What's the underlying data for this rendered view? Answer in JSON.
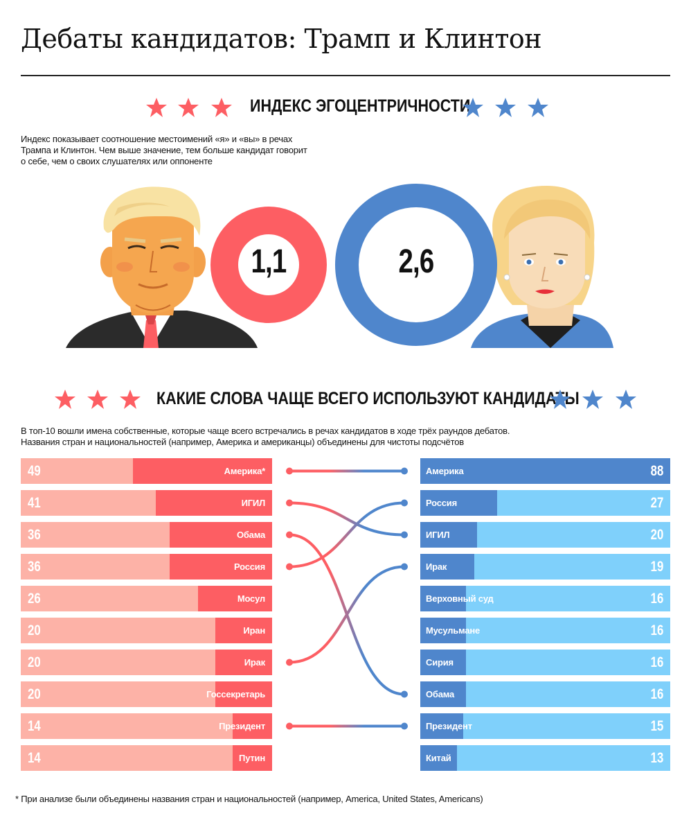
{
  "title": "Дебаты кандидатов: Трамп и Клинтон",
  "section1": {
    "heading": "ИНДЕКС ЭГОЦЕНТРИЧНОСТИ",
    "description": [
      "Индекс показывает соотношение местоимений «я» и «вы» в речах",
      "Трампа и Клинтон. Чем выше значение, тем больше кандидат говорит",
      "о себе, чем о своих слушателях или оппоненте"
    ],
    "trump_index": "1,1",
    "clinton_index": "2,6"
  },
  "section2": {
    "heading": "КАКИЕ СЛОВА ЧАЩЕ ВСЕГО ИСПОЛЬЗУЮТ КАНДИДАТЫ",
    "description": [
      "В топ-10 вошли имена собственные, которые чаще всего встречались в речах кандидатов в ходе трёх раундов дебатов.",
      "Названия стран и национальностей (например, Америка и американцы) объединены для чистоты подсчётов"
    ]
  },
  "footnote": "* При анализе были объединены названия стран и национальностей (например, America, United States, Americans)",
  "colors": {
    "red": "#fd5e63",
    "red_light": "#fdb2a7",
    "blue": "#4f86cc",
    "blue_light": "#7fd0fb"
  },
  "chart_data": {
    "type": "bar",
    "title": "КАКИЕ СЛОВА ЧАЩЕ ВСЕГО ИСПОЛЬЗУЮТ КАНДИДАТЫ",
    "series": [
      {
        "categories": [
          "Америка*",
          "ИГИЛ",
          "Обама",
          "Россия",
          "Мосул",
          "Иран",
          "Ирак",
          "Госсекретарь",
          "Президент",
          "Путин"
        ],
        "values": [
          49,
          41,
          36,
          36,
          26,
          20,
          20,
          20,
          14,
          14
        ]
      },
      {
        "categories": [
          "Америка",
          "Россия",
          "ИГИЛ",
          "Ирак",
          "Верховный суд",
          "Мусульмане",
          "Сирия",
          "Обама",
          "Президент",
          "Китай"
        ],
        "values": [
          88,
          27,
          20,
          19,
          16,
          16,
          16,
          16,
          15,
          13
        ]
      }
    ],
    "links": [
      {
        "left": "Америка*",
        "right": "Америка"
      },
      {
        "left": "ИГИЛ",
        "right": "ИГИЛ"
      },
      {
        "left": "Обама",
        "right": "Обама"
      },
      {
        "left": "Россия",
        "right": "Россия"
      },
      {
        "left": "Ирак",
        "right": "Ирак"
      },
      {
        "left": "Президент",
        "right": "Президент"
      }
    ],
    "xlim": [
      0,
      88
    ]
  }
}
